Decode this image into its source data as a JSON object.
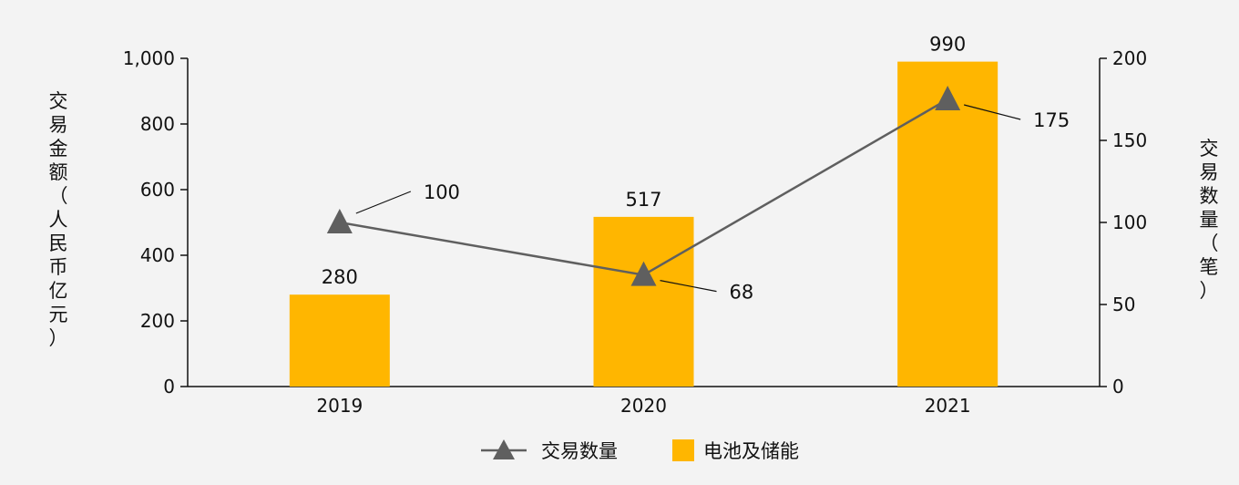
{
  "chart_data": {
    "type": "bar",
    "categories": [
      "2019",
      "2020",
      "2021"
    ],
    "series": [
      {
        "name": "电池及储能",
        "type": "bar",
        "axis": "left",
        "color": "#FFB600",
        "values": [
          280,
          517,
          990
        ],
        "labels": [
          "280",
          "517",
          "990"
        ]
      },
      {
        "name": "交易数量",
        "type": "line",
        "axis": "right",
        "color": "#5F5F5F",
        "marker": "triangle",
        "values": [
          100,
          68,
          175
        ],
        "labels": [
          "100",
          "68",
          "175"
        ]
      }
    ],
    "ylabel_left": "交易金额（人民币亿元）",
    "ylabel_right": "交易数量（笔）",
    "ylim_left": [
      0,
      1000
    ],
    "ylim_right": [
      0,
      200
    ],
    "yticks_left": [
      "0",
      "200",
      "400",
      "600",
      "800",
      "1,000"
    ],
    "yticks_right": [
      "0",
      "50",
      "100",
      "150",
      "200"
    ],
    "grid": false,
    "legend": {
      "placement": "bottom-center",
      "items": [
        "交易数量",
        "电池及储能"
      ]
    }
  }
}
